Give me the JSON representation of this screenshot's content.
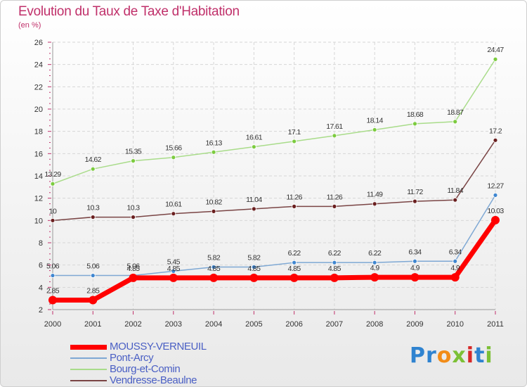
{
  "chart_data": {
    "type": "line",
    "title": "Evolution du Taux de Taxe d'Habitation",
    "subtitle": "(en %)",
    "xlabel": "",
    "ylabel": "",
    "x": [
      "2000",
      "2001",
      "2002",
      "2003",
      "2004",
      "2005",
      "2006",
      "2007",
      "2008",
      "2009",
      "2010",
      "2011"
    ],
    "ylim": [
      2,
      26
    ],
    "yticks": [
      "2",
      "4",
      "6",
      "8",
      "10",
      "12",
      "14",
      "16",
      "18",
      "20",
      "22",
      "24",
      "26"
    ],
    "grid": true,
    "legend_position": "bottom-left",
    "series": [
      {
        "name": "MOUSSY-VERNEUIL",
        "color": "#ff0000",
        "marker_color": "#ff0000",
        "values": [
          2.85,
          2.85,
          4.85,
          4.85,
          4.85,
          4.85,
          4.85,
          4.85,
          4.9,
          4.9,
          4.9,
          10.03
        ],
        "labels": [
          "2.85",
          "2.85",
          "4.85",
          "4.85",
          "4.85",
          "4.85",
          "4.85",
          "4.85",
          "4.9",
          "4.9",
          "4.9",
          "10.03"
        ]
      },
      {
        "name": "Pont-Arcy",
        "color": "#7ea8d4",
        "marker_color": "#3f86d0",
        "values": [
          5.06,
          5.06,
          5.06,
          5.45,
          5.82,
          5.82,
          6.22,
          6.22,
          6.22,
          6.34,
          6.34,
          12.27
        ],
        "labels": [
          "5.06",
          "5.06",
          "5.06",
          "5.45",
          "5.82",
          "5.82",
          "6.22",
          "6.22",
          "6.22",
          "6.34",
          "6.34",
          "12.27"
        ]
      },
      {
        "name": "Bourg-et-Comin",
        "color": "#a9dc8a",
        "marker_color": "#7ccb3f",
        "values": [
          13.29,
          14.62,
          15.35,
          15.66,
          16.13,
          16.61,
          17.1,
          17.61,
          18.14,
          18.68,
          18.87,
          24.47
        ],
        "labels": [
          "13.29",
          "14.62",
          "15.35",
          "15.66",
          "16.13",
          "16.61",
          "17.1",
          "17.61",
          "18.14",
          "18.68",
          "18.87",
          "24.47"
        ]
      },
      {
        "name": "Vendresse-Beaulne",
        "color": "#7a4545",
        "marker_color": "#6a1f1f",
        "values": [
          10,
          10.3,
          10.3,
          10.61,
          10.82,
          11.04,
          11.26,
          11.26,
          11.49,
          11.72,
          11.84,
          17.2
        ],
        "labels": [
          "10",
          "10.3",
          "10.3",
          "10.61",
          "10.82",
          "11.04",
          "11.26",
          "11.26",
          "11.49",
          "11.72",
          "11.84",
          "17.2"
        ]
      }
    ]
  },
  "logo": {
    "letters": [
      "P",
      "r",
      "o",
      "x",
      "i",
      "t",
      "i"
    ],
    "colors": [
      "#2f83d0",
      "#2f83d0",
      "#f28c18",
      "#7cc036",
      "#d62828",
      "#2f83d0",
      "#7cc036"
    ]
  }
}
